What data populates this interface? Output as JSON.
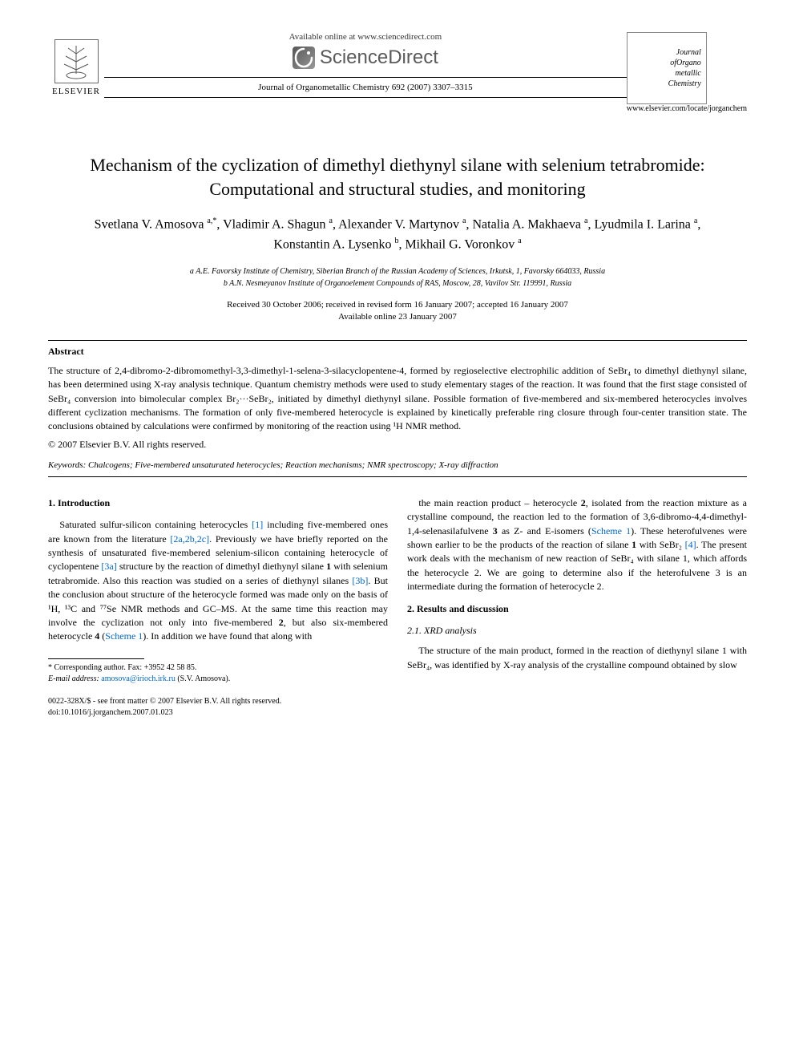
{
  "header": {
    "available_text": "Available online at www.sciencedirect.com",
    "sciencedirect_label": "ScienceDirect",
    "elsevier_label": "ELSEVIER",
    "journal_ref": "Journal of Organometallic Chemistry 692 (2007) 3307–3315",
    "journal_url": "www.elsevier.com/locate/jorganchem",
    "journal_logo_line1": "Journal",
    "journal_logo_line2": "ofOrgano",
    "journal_logo_line3": "metallic",
    "journal_logo_line4": "Chemistry"
  },
  "title": "Mechanism of the cyclization of dimethyl diethynyl silane with selenium tetrabromide: Computational and structural studies, and monitoring",
  "authors_html": "Svetlana V. Amosova <span class='sup'>a,*</span>, Vladimir A. Shagun <span class='sup'>a</span>, Alexander V. Martynov <span class='sup'>a</span>, Natalia A. Makhaeva <span class='sup'>a</span>, Lyudmila I. Larina <span class='sup'>a</span>, Konstantin A. Lysenko <span class='sup'>b</span>, Mikhail G. Voronkov <span class='sup'>a</span>",
  "affiliations": {
    "a": "a A.E. Favorsky Institute of Chemistry, Siberian Branch of the Russian Academy of Sciences, Irkutsk, 1, Favorsky 664033, Russia",
    "b": "b A.N. Nesmeyanov Institute of Organoelement Compounds of RAS, Moscow, 28, Vavilov Str. 119991, Russia"
  },
  "dates": {
    "received": "Received 30 October 2006; received in revised form 16 January 2007; accepted 16 January 2007",
    "available": "Available online 23 January 2007"
  },
  "abstract": {
    "heading": "Abstract",
    "text": "The structure of 2,4-dibromo-2-dibromomethyl-3,3-dimethyl-1-selena-3-silacyclopentene-4, formed by regioselective electrophilic addition of SeBr₄ to dimethyl diethynyl silane, has been determined using X-ray analysis technique. Quantum chemistry methods were used to study elementary stages of the reaction. It was found that the first stage consisted of SeBr₄ conversion into bimolecular complex Br₂···SeBr₂, initiated by dimethyl diethynyl silane. Possible formation of five-membered and six-membered heterocycles involves different cyclization mechanisms. The formation of only five-membered heterocycle is explained by kinetically preferable ring closure through four-center transition state. The conclusions obtained by calculations were confirmed by monitoring of the reaction using ¹H NMR method.",
    "copyright": "© 2007 Elsevier B.V. All rights reserved."
  },
  "keywords": {
    "label": "Keywords:",
    "text": "Chalcogens; Five-membered unsaturated heterocycles; Reaction mechanisms; NMR spectroscopy; X-ray diffraction"
  },
  "sections": {
    "intro_heading": "1. Introduction",
    "intro_p1": "Saturated sulfur-silicon containing heterocycles [1] including five-membered ones are known from the literature [2a,2b,2c]. Previously we have briefly reported on the synthesis of unsaturated five-membered selenium-silicon containing heterocycle of cyclopentene [3a] structure by the reaction of dimethyl diethynyl silane 1 with selenium tetrabromide. Also this reaction was studied on a series of diethynyl silanes [3b]. But the conclusion about structure of the heterocycle formed was made only on the basis of ¹H, ¹³C and ⁷⁷Se NMR methods and GC–MS. At the same time this reaction may involve the cyclization not only into five-membered 2, but also six-membered heterocycle 4 (Scheme 1). In addition we have found that along with",
    "intro_p2": "the main reaction product – heterocycle 2, isolated from the reaction mixture as a crystalline compound, the reaction led to the formation of 3,6-dibromo-4,4-dimethyl-1,4-selenasilafulvene 3 as Z- and E-isomers (Scheme 1). These heterofulvenes were shown earlier to be the products of the reaction of silane 1 with SeBr₂ [4]. The present work deals with the mechanism of new reaction of SeBr₄ with silane 1, which affords the heterocycle 2. We are going to determine also if the heterofulvene 3 is an intermediate during the formation of heterocycle 2.",
    "results_heading": "2. Results and discussion",
    "xrd_heading": "2.1. XRD analysis",
    "xrd_p1": "The structure of the main product, formed in the reaction of diethynyl silane 1 with SeBr₄, was identified by X-ray analysis of the crystalline compound obtained by slow"
  },
  "footnote": {
    "corresponding": "* Corresponding author. Fax: +3952 42 58 85.",
    "email_label": "E-mail address:",
    "email": "amosova@irioch.irk.ru",
    "email_name": "(S.V. Amosova)."
  },
  "bottom": {
    "line1": "0022-328X/$ - see front matter © 2007 Elsevier B.V. All rights reserved.",
    "line2": "doi:10.1016/j.jorganchem.2007.01.023"
  },
  "refs": {
    "r1": "[1]",
    "r2": "[2a,2b,2c]",
    "r3a": "[3a]",
    "r3b": "[3b]",
    "r4": "[4]",
    "scheme1": "Scheme 1"
  },
  "colors": {
    "link": "#0066cc",
    "text": "#000000",
    "background": "#ffffff",
    "logo_gray": "#5a5a5a"
  }
}
